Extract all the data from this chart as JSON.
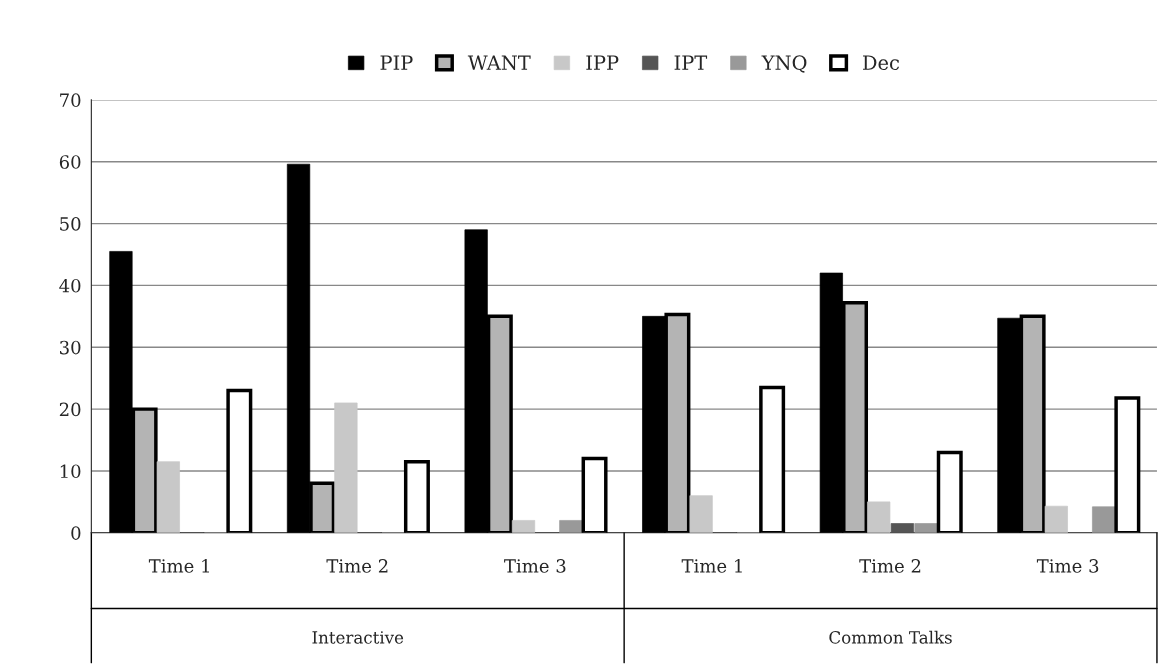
{
  "chart_data": {
    "type": "bar",
    "categories": [
      "Time 1",
      "Time 2",
      "Time 3",
      "Time 1",
      "Time 2",
      "Time 3"
    ],
    "series": [
      {
        "name": "PIP",
        "color": "#000000",
        "values": [
          45.5,
          59.6,
          49,
          35,
          42,
          34.7
        ]
      },
      {
        "name": "WANT",
        "color": "#b4b4b4",
        "values": [
          20,
          8,
          35,
          35.3,
          37.2,
          35
        ]
      },
      {
        "name": "IPP",
        "color": "#c8c8c8",
        "values": [
          11.5,
          21,
          2,
          6,
          5,
          4.3
        ]
      },
      {
        "name": "IPT",
        "color": "#555555",
        "values": [
          0,
          0,
          0,
          0,
          1.5,
          0
        ]
      },
      {
        "name": "YNQ",
        "color": "#999999",
        "values": [
          0,
          0,
          2,
          0,
          1.5,
          4.2
        ]
      },
      {
        "name": "Dec",
        "color": "#ffffff",
        "values": [
          23,
          11.5,
          12,
          23.5,
          13,
          21.8
        ]
      }
    ],
    "ylim": [
      0,
      70
    ],
    "yticks": [
      0,
      10,
      20,
      30,
      40,
      50,
      60,
      70
    ],
    "grid": "y",
    "legend": "top",
    "annotations": [
      "Interactive",
      "Common Talks"
    ]
  }
}
